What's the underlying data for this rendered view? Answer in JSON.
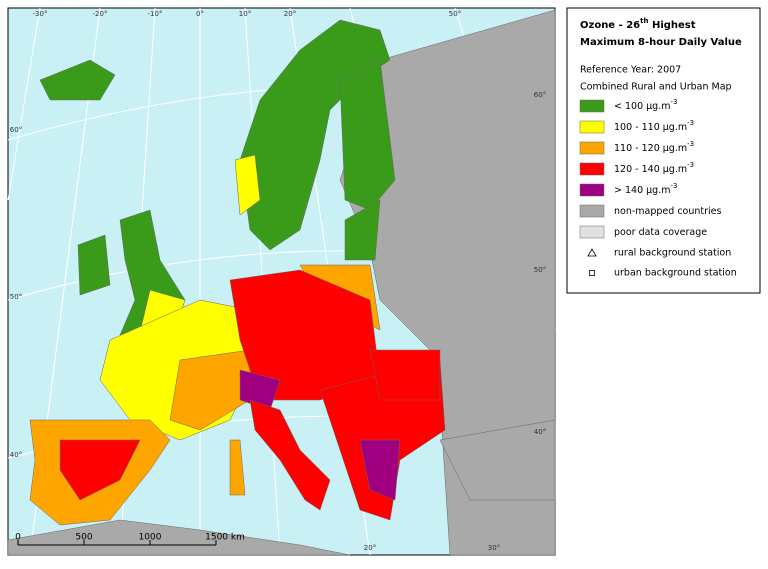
{
  "legend": {
    "title": {
      "pre": "Ozone - 26",
      "sup": "th",
      "post": " Highest"
    },
    "title2": "Maximum 8-hour Daily Value",
    "reference": "Reference Year: 2007",
    "subtitle": "Combined Rural and Urban Map",
    "items": [
      {
        "color": "#3a9a1a",
        "label": "< 100 µg.m",
        "sup": "-3"
      },
      {
        "color": "#ffff00",
        "label": "100 - 110 µg.m",
        "sup": "-3"
      },
      {
        "color": "#ffa500",
        "label": "110 - 120 µg.m",
        "sup": "-3"
      },
      {
        "color": "#ff0000",
        "label": "120 - 140 µg.m",
        "sup": "-3"
      },
      {
        "color": "#a0007f",
        "label": "> 140 µg.m",
        "sup": "-3"
      },
      {
        "color": "#a9a9a9",
        "label": "non-mapped countries"
      },
      {
        "color": "#e0e0e0",
        "label": "poor data coverage"
      }
    ],
    "stations": [
      {
        "symbol": "triangle",
        "label": "rural background station"
      },
      {
        "symbol": "square",
        "label": "urban background station"
      }
    ]
  },
  "graticule": {
    "top": [
      "-30°",
      "-20°",
      "-10°",
      "0°",
      "10°",
      "20°",
      "50°"
    ],
    "left": [
      "60°",
      "50°",
      "40°"
    ],
    "right": [
      "60°",
      "50°",
      "40°"
    ],
    "bottom": [
      "20°",
      "30°"
    ]
  },
  "scale": [
    "0",
    "500",
    "1000",
    "1500 km"
  ]
}
